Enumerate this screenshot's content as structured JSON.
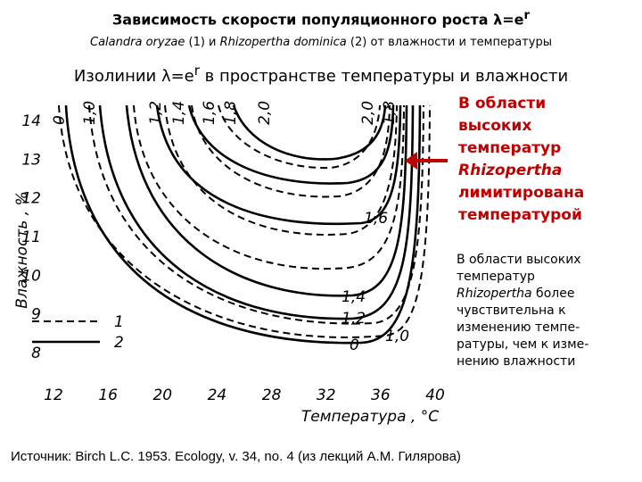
{
  "title": {
    "text": "Зависимость скорости популяционного роста λ=e",
    "sup": "r"
  },
  "subtitle": {
    "species1": "Calandra oryzae",
    "mid": " (1) и ",
    "species2": "Rhizopertha dominica",
    "end": " (2) от влажности и температуры"
  },
  "heading": {
    "text": "Изолинии λ=e",
    "sup": "r",
    "end": " в пространстве температуры и влажности"
  },
  "figure": {
    "x_label": "Температура , °С",
    "y_label": "Влажность , %",
    "xticks": [
      12,
      16,
      20,
      24,
      28,
      32,
      36,
      40
    ],
    "yticks": [
      8,
      9,
      10,
      11,
      12,
      13,
      14
    ],
    "legend": [
      "1",
      "2"
    ],
    "curve_labels": [
      "0",
      "1,0",
      "1,2",
      "1,4",
      "1,6",
      "1,8",
      "2,0",
      "2,0",
      "1,8",
      "1,6",
      "1,4",
      "1,2",
      "0",
      "1,0"
    ]
  },
  "callout": {
    "line1": "В области",
    "line2": "высоких",
    "line3": "температур",
    "species": "Rhizopertha",
    "line5": "лимитирована",
    "line6": "температурой"
  },
  "note": {
    "p1": "В области высоких",
    "p2": "температур",
    "species": "Rhizopertha",
    "p3": " более",
    "p4": "чувствительна к",
    "p5": "изменению темпе-",
    "p6": "ратуры, чем к изме-",
    "p7": "нению влажности"
  },
  "source": "Источник: Birch L.C. 1953. Ecology, v. 34, no. 4 (из лекций А.М. Гилярова)"
}
